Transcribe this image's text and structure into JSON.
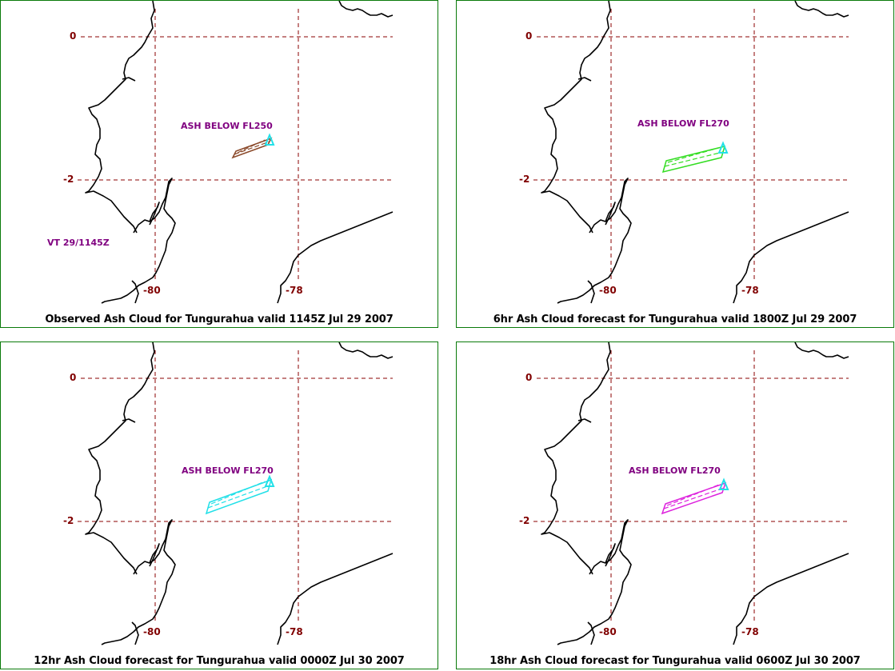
{
  "panels": [
    {
      "caption": "Observed Ash Cloud for Tungurahua valid 1145Z Jul 29 2007",
      "ash_label": "ASH BELOW FL250",
      "valid_time": "VT 29/1145Z",
      "cloud_color": "#8b4a2b",
      "lat_labels": [
        "0",
        "-2"
      ],
      "lon_labels": [
        "-80",
        "-78"
      ]
    },
    {
      "caption": "6hr Ash Cloud forecast for Tungurahua valid 1800Z Jul 29 2007",
      "ash_label": "ASH BELOW FL270",
      "valid_time": "",
      "cloud_color": "#33dd22",
      "lat_labels": [
        "0",
        "-2"
      ],
      "lon_labels": [
        "-80",
        "-78"
      ]
    },
    {
      "caption": "12hr Ash Cloud forecast for Tungurahua valid 0000Z Jul 30 2007",
      "ash_label": "ASH BELOW FL270",
      "valid_time": "",
      "cloud_color": "#22e0e8",
      "lat_labels": [
        "0",
        "-2"
      ],
      "lon_labels": [
        "-80",
        "-78"
      ]
    },
    {
      "caption": "18hr Ash Cloud forecast for Tungurahua valid 0600Z Jul 30 2007",
      "ash_label": "ASH BELOW FL270",
      "valid_time": "",
      "cloud_color": "#dd22dd",
      "lat_labels": [
        "0",
        "-2"
      ],
      "lon_labels": [
        "-80",
        "-78"
      ]
    }
  ],
  "colors": {
    "grid": "#8b0000",
    "coast": "#000000",
    "volcano_marker": "#22e0e8",
    "border": "#0a7a0a"
  }
}
